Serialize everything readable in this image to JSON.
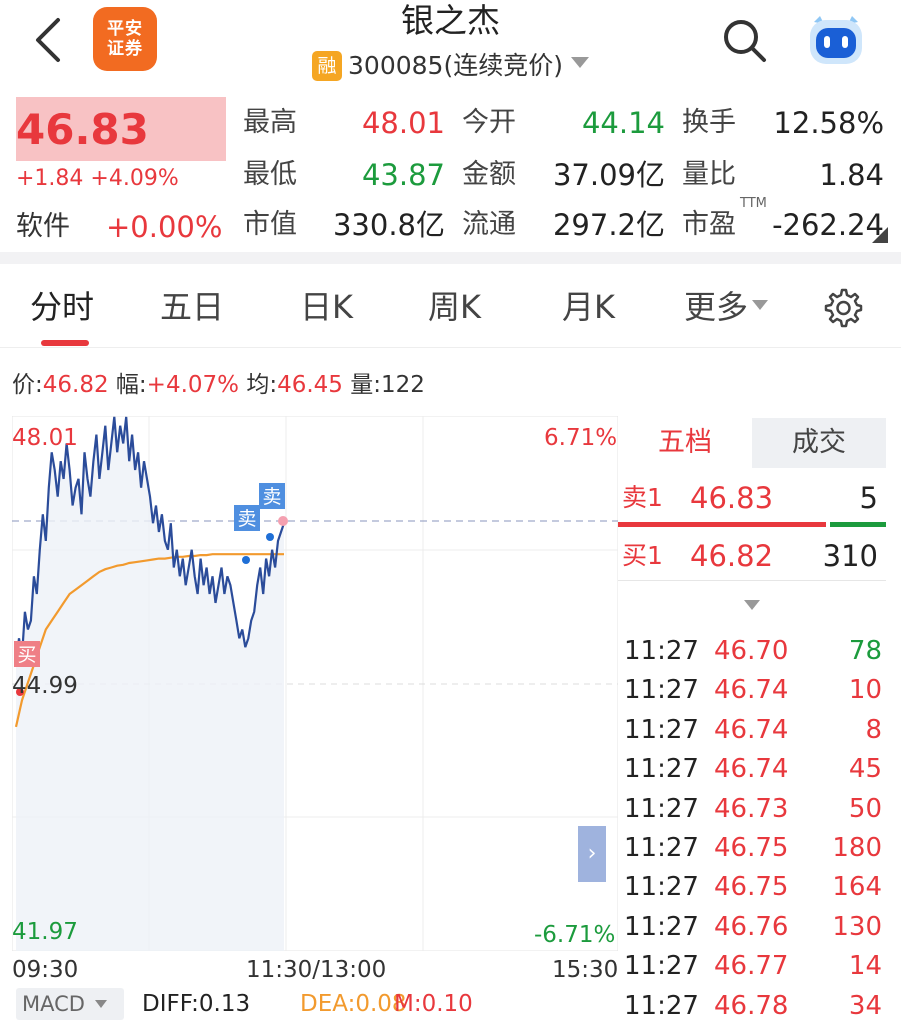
{
  "header": {
    "broker_logo_line1": "平安",
    "broker_logo_line2": "证券",
    "stock_name": "银之杰",
    "margin_badge": "融",
    "stock_code_status": "300085(连续竞价)"
  },
  "quote": {
    "price": "46.83",
    "change": "+1.84",
    "change_pct": "+4.09%",
    "sector_name": "软件",
    "sector_change": "+0.00%",
    "fields": [
      {
        "label": "最高",
        "value": "48.01",
        "color": "#e8383d"
      },
      {
        "label": "今开",
        "value": "44.14",
        "color": "#1c9b3d"
      },
      {
        "label": "换手",
        "value": "12.58%",
        "color": "#222222"
      },
      {
        "label": "最低",
        "value": "43.87",
        "color": "#1c9b3d"
      },
      {
        "label": "金额",
        "value": "37.09亿",
        "color": "#222222"
      },
      {
        "label": "量比",
        "value": "1.84",
        "color": "#222222"
      },
      {
        "label": "市值",
        "value": "330.8亿",
        "color": "#222222"
      },
      {
        "label": "流通",
        "value": "297.2亿",
        "color": "#222222"
      },
      {
        "label": "市盈",
        "value": "-262.24",
        "color": "#222222"
      }
    ],
    "pe_superscript": "TTM"
  },
  "tabs": [
    "分时",
    "五日",
    "日K",
    "周K",
    "月K",
    "更多"
  ],
  "info_line": {
    "price_label": "价:",
    "price": "46.82",
    "range_label": "幅:",
    "range": "+4.07%",
    "avg_label": "均:",
    "avg": "46.45",
    "vol_label": "量:",
    "vol": "122"
  },
  "chart": {
    "y_high": "48.01",
    "y_mid": "44.99",
    "y_low": "41.97",
    "pct_high": "6.71%",
    "pct_low": "-6.71%",
    "time_start": "09:30",
    "time_mid": "11:30/13:00",
    "time_end": "15:30",
    "markers": [
      "卖",
      "卖",
      "买"
    ],
    "expand_glyph": "›"
  },
  "chart_data": {
    "type": "line",
    "ylim": [
      41.97,
      48.01
    ],
    "prev_close": 44.99,
    "series": [
      {
        "values": [
          45.2,
          45.5,
          45.3,
          45.8,
          45.6,
          45.7,
          46.2,
          46.0,
          46.5,
          46.9,
          46.6,
          47.2,
          47.6,
          47.4,
          47.1,
          47.5,
          47.3,
          47.7,
          47.4,
          47.0,
          47.2,
          47.3,
          46.9,
          47.6,
          47.3,
          47.1,
          47.5,
          47.8,
          47.3,
          47.6,
          47.9,
          47.4,
          47.7,
          48.0,
          47.6,
          47.9,
          47.7,
          48.0,
          47.5,
          47.8,
          47.4,
          47.6,
          47.2,
          47.5,
          47.3,
          47.1,
          46.8,
          47.0,
          46.7,
          46.9,
          46.6,
          46.5,
          46.8,
          46.3,
          46.5,
          46.2,
          46.4,
          46.1,
          46.3,
          46.5,
          46.2,
          46.0,
          46.4,
          46.1,
          46.3,
          46.0,
          46.2,
          45.9,
          46.1,
          46.3,
          46.0,
          46.2,
          46.1,
          45.9,
          45.7,
          45.5,
          45.6,
          45.4,
          45.5,
          45.7,
          45.8,
          46.1,
          46.3,
          46.0,
          46.4,
          46.2,
          46.5,
          46.3,
          46.6,
          46.7,
          46.8
        ]
      },
      {
        "values": [
          44.5,
          44.8,
          45.0,
          45.2,
          45.4,
          45.6,
          45.7,
          45.8,
          45.9,
          46.0,
          46.05,
          46.1,
          46.15,
          46.2,
          46.25,
          46.28,
          46.3,
          46.32,
          46.33,
          46.35,
          46.36,
          46.37,
          46.38,
          46.39,
          46.4,
          46.4,
          46.41,
          46.42,
          46.42,
          46.43,
          46.43,
          46.44,
          46.44,
          46.45,
          46.45,
          46.45,
          46.45,
          46.45,
          46.45,
          46.45,
          46.45,
          46.45,
          46.45,
          46.45,
          46.45,
          46.45
        ]
      }
    ]
  },
  "order_book": {
    "tab_active": "五档",
    "tab_inactive": "成交",
    "sell1": {
      "label": "卖1",
      "price": "46.83",
      "vol": "5"
    },
    "buy1": {
      "label": "买1",
      "price": "46.82",
      "vol": "310"
    },
    "ticks": [
      {
        "time": "11:27",
        "price": "46.70",
        "vol": "78",
        "color": "#1c9b3d"
      },
      {
        "time": "11:27",
        "price": "46.74",
        "vol": "10",
        "color": "#e8383d"
      },
      {
        "time": "11:27",
        "price": "46.74",
        "vol": "8",
        "color": "#e8383d"
      },
      {
        "time": "11:27",
        "price": "46.74",
        "vol": "45",
        "color": "#e8383d"
      },
      {
        "time": "11:27",
        "price": "46.73",
        "vol": "50",
        "color": "#e8383d"
      },
      {
        "time": "11:27",
        "price": "46.75",
        "vol": "180",
        "color": "#e8383d"
      },
      {
        "time": "11:27",
        "price": "46.75",
        "vol": "164",
        "color": "#e8383d"
      },
      {
        "time": "11:27",
        "price": "46.76",
        "vol": "130",
        "color": "#e8383d"
      },
      {
        "time": "11:27",
        "price": "46.77",
        "vol": "14",
        "color": "#e8383d"
      },
      {
        "time": "11:27",
        "price": "46.78",
        "vol": "34",
        "color": "#e8383d"
      }
    ]
  },
  "macd": {
    "selector": "MACD",
    "diff": "DIFF:0.13",
    "dea": "DEA:0.08",
    "m": "M:0.10"
  },
  "colors": {
    "up": "#e8383d",
    "down": "#1c9b3d",
    "price_line": "#2b4c9a",
    "avg_line": "#f29a2e"
  }
}
